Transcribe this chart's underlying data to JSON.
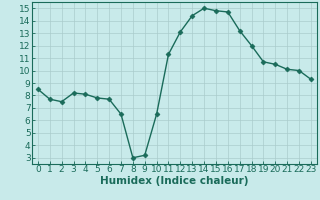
{
  "x": [
    0,
    1,
    2,
    3,
    4,
    5,
    6,
    7,
    8,
    9,
    10,
    11,
    12,
    13,
    14,
    15,
    16,
    17,
    18,
    19,
    20,
    21,
    22,
    23
  ],
  "y": [
    8.5,
    7.7,
    7.5,
    8.2,
    8.1,
    7.8,
    7.7,
    6.5,
    3.0,
    3.2,
    6.5,
    11.3,
    13.1,
    14.4,
    15.0,
    14.8,
    14.7,
    13.2,
    12.0,
    10.7,
    10.5,
    10.1,
    10.0,
    9.3
  ],
  "line_color": "#1a6b5a",
  "marker": "D",
  "marker_size": 2.5,
  "bg_color": "#c8eaea",
  "grid_color": "#aacccc",
  "xlabel": "Humidex (Indice chaleur)",
  "xlim": [
    -0.5,
    23.5
  ],
  "ylim": [
    2.5,
    15.5
  ],
  "xticks": [
    0,
    1,
    2,
    3,
    4,
    5,
    6,
    7,
    8,
    9,
    10,
    11,
    12,
    13,
    14,
    15,
    16,
    17,
    18,
    19,
    20,
    21,
    22,
    23
  ],
  "yticks": [
    3,
    4,
    5,
    6,
    7,
    8,
    9,
    10,
    11,
    12,
    13,
    14,
    15
  ],
  "tick_color": "#1a6b5a",
  "tick_fontsize": 6.5,
  "xlabel_fontsize": 7.5,
  "line_width": 1.0
}
